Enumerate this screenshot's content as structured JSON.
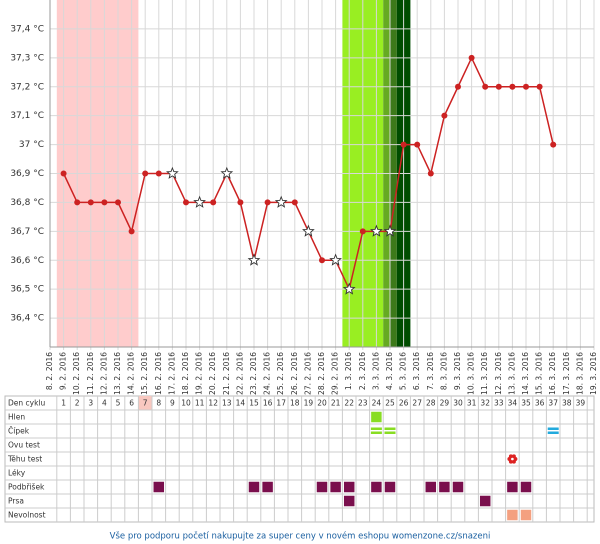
{
  "chart_data": {
    "type": "line",
    "categories": [
      "8. 2. 2016",
      "9. 2. 2016",
      "10. 2. 2016",
      "11. 2. 2016",
      "12. 2. 2016",
      "13. 2. 2016",
      "14. 2. 2016",
      "15. 2. 2016",
      "16. 2. 2016",
      "17. 2. 2016",
      "18. 2. 2016",
      "19. 2. 2016",
      "20. 2. 2016",
      "21. 2. 2016",
      "22. 2. 2016",
      "23. 2. 2016",
      "24. 2. 2016",
      "25. 2. 2016",
      "26. 2. 2016",
      "27. 2. 2016",
      "28. 2. 2016",
      "29. 2. 2016",
      "1. 3. 2016",
      "2. 3. 2016",
      "3. 3. 2016",
      "4. 3. 2016",
      "5. 3. 2016",
      "6. 3. 2016",
      "7. 3. 2016",
      "8. 3. 2016",
      "9. 3. 2016",
      "10. 3. 2016",
      "11. 3. 2016",
      "12. 3. 2016",
      "13. 3. 2016",
      "14. 3. 2016",
      "15. 3. 2016",
      "16. 3. 2016",
      "17. 3. 2016",
      "18. 3. 2016",
      "19. 3. 2016"
    ],
    "values": [
      null,
      36.9,
      36.8,
      36.8,
      36.8,
      36.8,
      36.7,
      36.9,
      36.9,
      36.9,
      36.8,
      36.8,
      36.8,
      36.9,
      36.8,
      36.6,
      36.8,
      36.8,
      36.8,
      36.7,
      36.6,
      36.6,
      36.5,
      36.7,
      36.7,
      36.7,
      37.0,
      37.0,
      36.9,
      37.1,
      37.2,
      37.3,
      37.2,
      37.2,
      37.2,
      37.2,
      37.2,
      37.0,
      null,
      null,
      null
    ],
    "markers": [
      null,
      "o",
      "o",
      "o",
      "o",
      "o",
      "o",
      "o",
      "o",
      "*",
      "o",
      "*",
      "o",
      "*",
      "o",
      "*",
      "o",
      "*",
      "o",
      "*",
      "o",
      "*",
      "*",
      "o",
      "*",
      "*",
      "o",
      "o",
      "o",
      "o",
      "o",
      "o",
      "o",
      "o",
      "o",
      "o",
      "o",
      "o",
      null,
      null,
      null
    ],
    "color": "#cc2222",
    "ylim": [
      36.3,
      37.5
    ],
    "yticks": [
      {
        "value": 36.4,
        "label": "36,4 °C"
      },
      {
        "value": 36.5,
        "label": "36,5 °C"
      },
      {
        "value": 36.6,
        "label": "36,6 °C"
      },
      {
        "value": 36.7,
        "label": "36,7 °C"
      },
      {
        "value": 36.8,
        "label": "36,8 °C"
      },
      {
        "value": 36.9,
        "label": "36,9 °C"
      },
      {
        "value": 37.0,
        "label": "37 °C"
      },
      {
        "value": 37.1,
        "label": "37,1 °C"
      },
      {
        "value": 37.2,
        "label": "37,2 °C"
      },
      {
        "value": 37.3,
        "label": "37,3 °C"
      },
      {
        "value": 37.4,
        "label": "37,4 °C"
      }
    ],
    "grid": true,
    "bands": [
      {
        "from": 0.5,
        "to": 6.5,
        "color": "#ffcccc"
      },
      {
        "from": 21.5,
        "to": 24.5,
        "color": "#99ee22"
      },
      {
        "from": 24.5,
        "to": 25,
        "color": "#66aa22"
      },
      {
        "from": 25,
        "to": 25.5,
        "color": "#3d7a1a"
      },
      {
        "from": 25.5,
        "to": 26.5,
        "color": "#004d00"
      }
    ]
  },
  "table": {
    "header_label": "Den cyklu",
    "cycle_days": [
      1,
      2,
      3,
      4,
      5,
      6,
      7,
      8,
      9,
      10,
      11,
      12,
      13,
      14,
      15,
      16,
      17,
      18,
      19,
      20,
      21,
      22,
      23,
      24,
      25,
      26,
      27,
      28,
      29,
      30,
      31,
      32,
      33,
      34,
      35,
      36,
      37,
      38,
      39
    ],
    "highlight_day": 7,
    "rows": [
      {
        "label": "Hlen",
        "marks": [
          {
            "day": 24,
            "color": "#88dd22",
            "shape": "square"
          }
        ]
      },
      {
        "label": "Čípek",
        "marks": [
          {
            "day": 24,
            "color": "#88dd22",
            "shape": "stripes"
          },
          {
            "day": 25,
            "color": "#88dd22",
            "shape": "stripes"
          },
          {
            "day": 37,
            "color": "#22aadd",
            "shape": "stripes"
          }
        ]
      },
      {
        "label": "Ovu test",
        "marks": []
      },
      {
        "label": "Těhu test",
        "marks": [
          {
            "day": 34,
            "color": "#dd2222",
            "shape": "flower"
          }
        ]
      },
      {
        "label": "Léky",
        "marks": []
      },
      {
        "label": "Podbřišek",
        "marks": [
          {
            "day": 8,
            "color": "#7a0f4d",
            "shape": "square"
          },
          {
            "day": 15,
            "color": "#7a0f4d",
            "shape": "square"
          },
          {
            "day": 16,
            "color": "#7a0f4d",
            "shape": "square"
          },
          {
            "day": 20,
            "color": "#7a0f4d",
            "shape": "square"
          },
          {
            "day": 21,
            "color": "#7a0f4d",
            "shape": "square"
          },
          {
            "day": 22,
            "color": "#7a0f4d",
            "shape": "square"
          },
          {
            "day": 24,
            "color": "#7a0f4d",
            "shape": "square"
          },
          {
            "day": 25,
            "color": "#7a0f4d",
            "shape": "square"
          },
          {
            "day": 28,
            "color": "#7a0f4d",
            "shape": "square"
          },
          {
            "day": 29,
            "color": "#7a0f4d",
            "shape": "square"
          },
          {
            "day": 30,
            "color": "#7a0f4d",
            "shape": "square"
          },
          {
            "day": 34,
            "color": "#7a0f4d",
            "shape": "square"
          },
          {
            "day": 35,
            "color": "#7a0f4d",
            "shape": "square"
          }
        ]
      },
      {
        "label": "Prsa",
        "marks": [
          {
            "day": 22,
            "color": "#7a0f4d",
            "shape": "square"
          },
          {
            "day": 32,
            "color": "#7a0f4d",
            "shape": "square"
          }
        ]
      },
      {
        "label": "Nevolnost",
        "marks": [
          {
            "day": 34,
            "color": "#f4a080",
            "shape": "square"
          },
          {
            "day": 35,
            "color": "#f4a080",
            "shape": "square"
          }
        ]
      }
    ]
  },
  "footer": "Vše pro podporu početí nakupujte za super ceny v novém eshopu womenzone.cz/snazeni"
}
